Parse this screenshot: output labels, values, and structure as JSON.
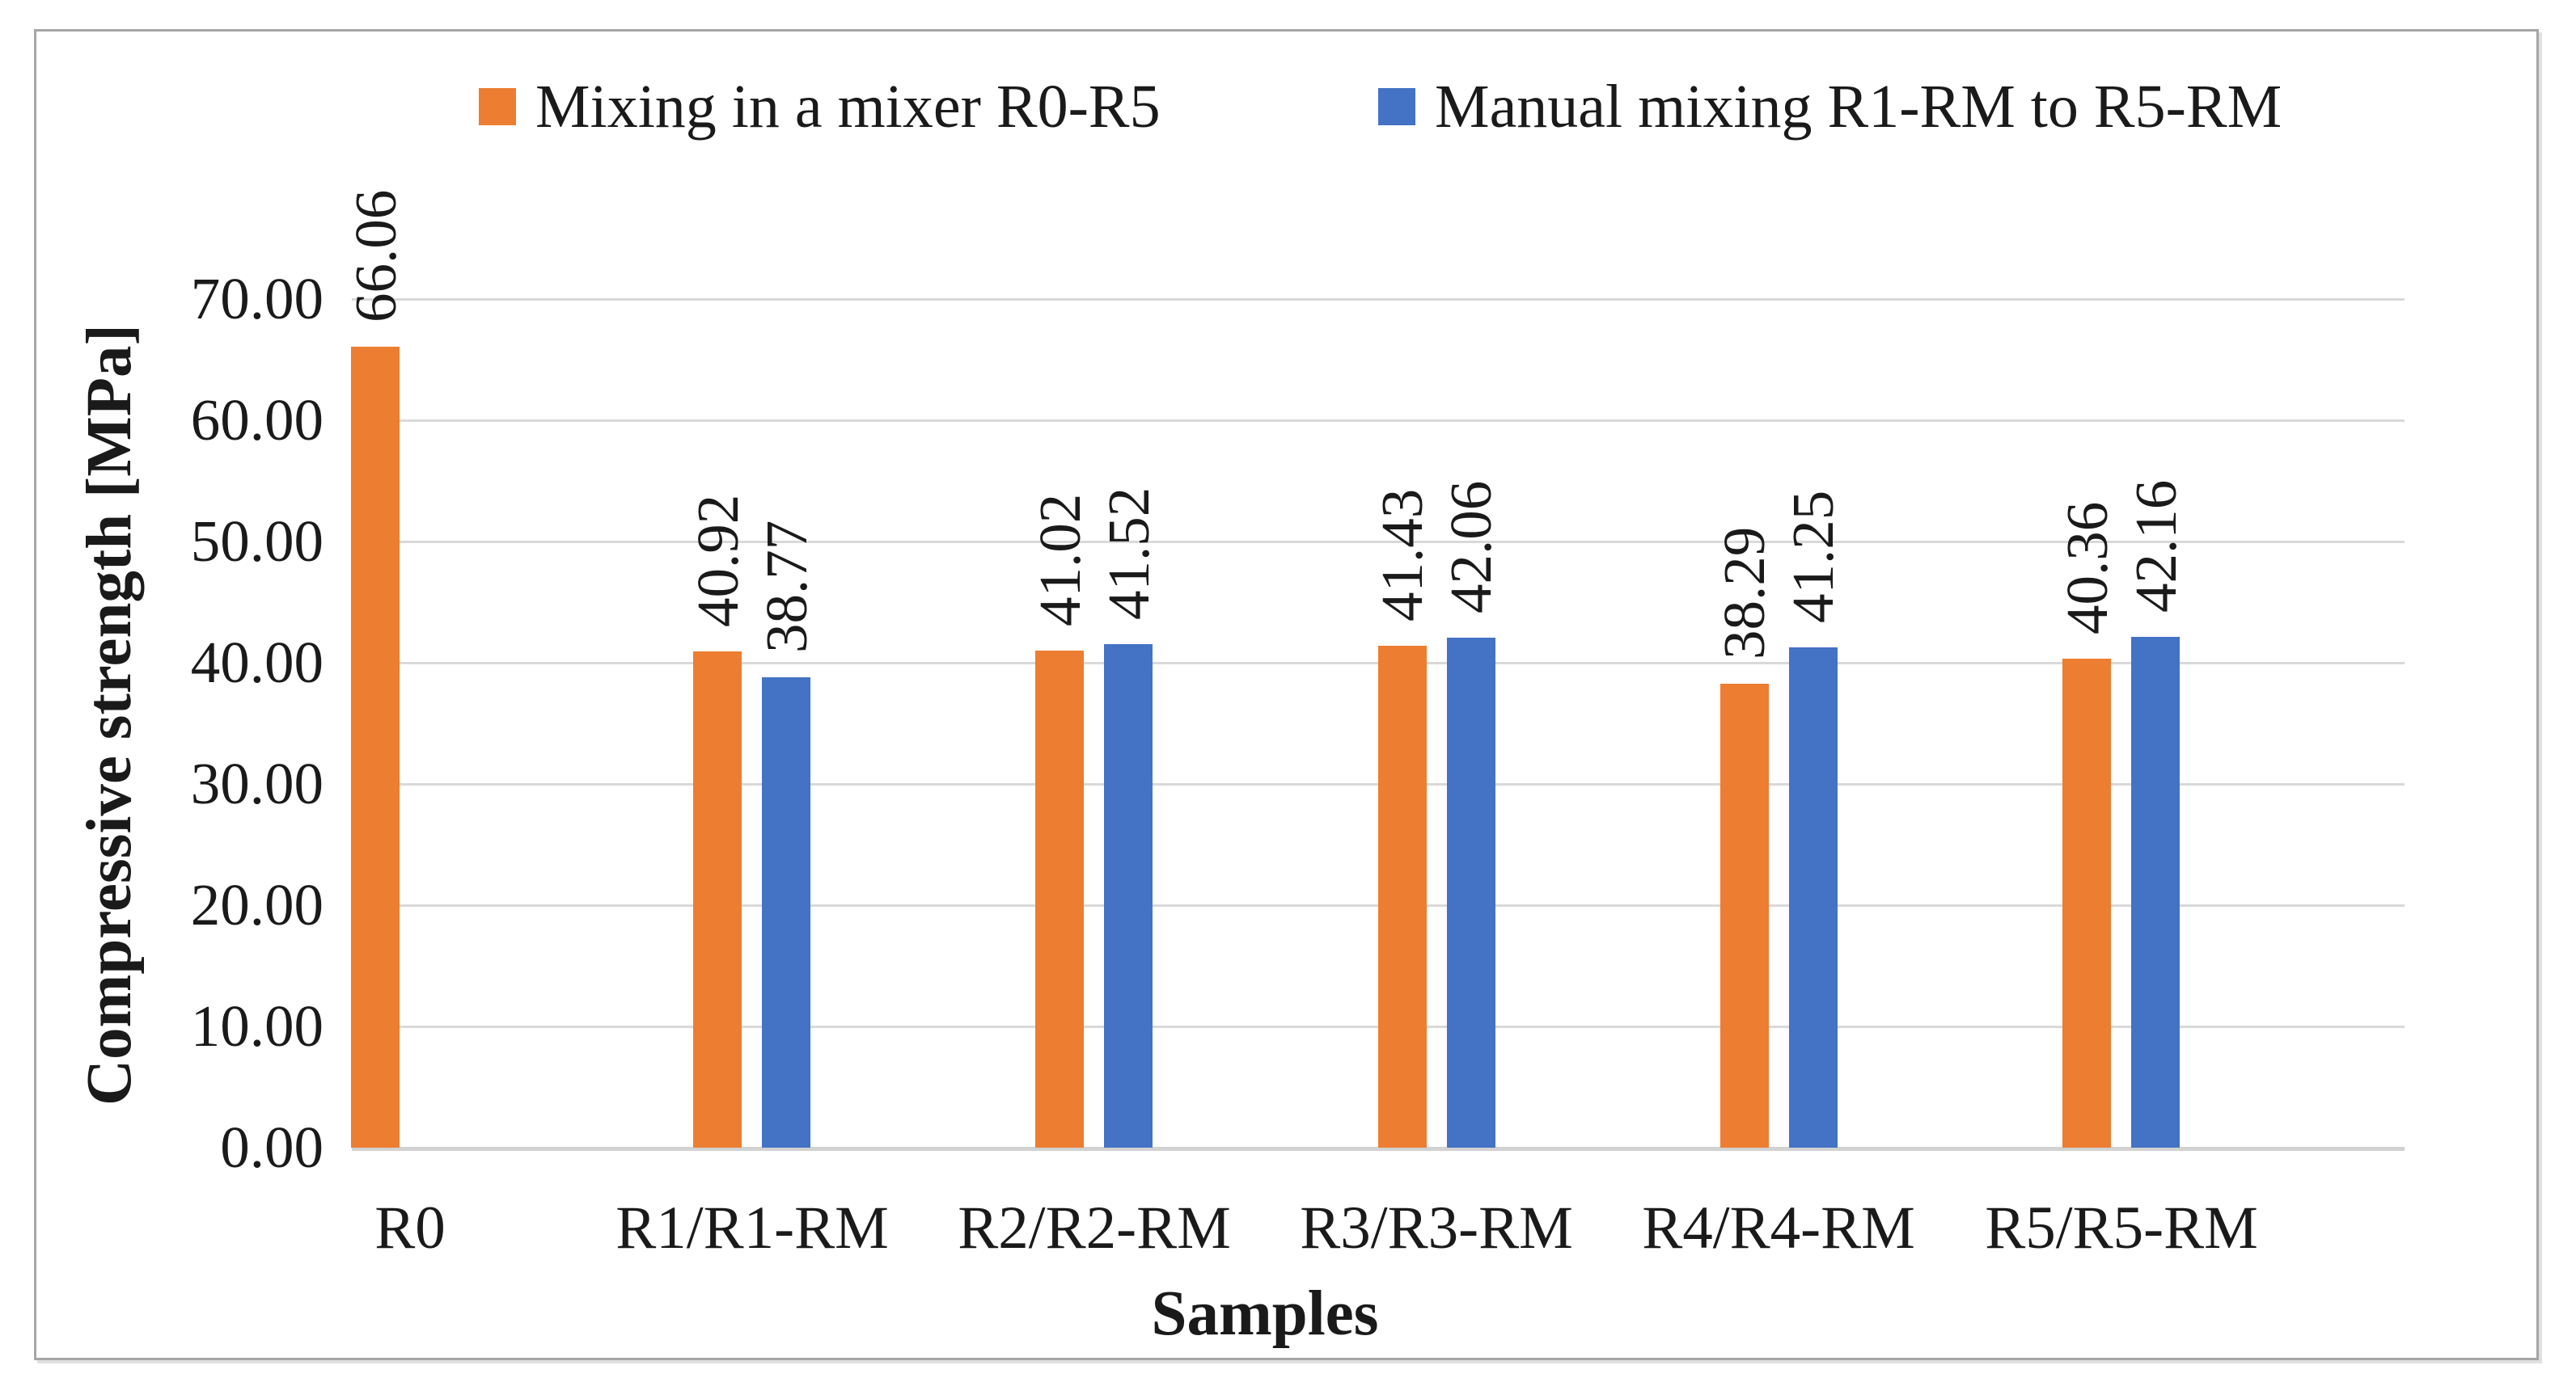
{
  "chart_data": {
    "type": "bar",
    "title": "",
    "categories": [
      "R0",
      "R1/R1-RM",
      "R2/R2-RM",
      "R3/R3-RM",
      "R4/R4-RM",
      "R5/R5-RM"
    ],
    "series": [
      {
        "name": "Mixing in a mixer R0-R5",
        "color": "#ED7D31",
        "values": [
          66.06,
          40.92,
          41.02,
          41.43,
          38.29,
          40.36
        ]
      },
      {
        "name": "Manual mixing R1-RM to R5-RM",
        "color": "#4472C4",
        "values": [
          null,
          38.77,
          41.52,
          42.06,
          41.25,
          42.16
        ]
      }
    ],
    "xlabel": "Samples",
    "ylabel": "Compressive strength [MPa]",
    "ylim": [
      0,
      70
    ],
    "ytick_step": 10,
    "ytick_labels": [
      "0.00",
      "10.00",
      "20.00",
      "30.00",
      "40.00",
      "50.00",
      "60.00",
      "70.00"
    ],
    "data_label_format": "two decimals, rotated 90 degrees above bars",
    "grid": "horizontal gridlines on",
    "legend_position": "top",
    "colors": {
      "gridline": "#D9D9D9",
      "axis_line": "#D2D2D2",
      "frame_border": "#A6A6A6",
      "text": "#1a1a1a",
      "background": "#ffffff"
    }
  }
}
